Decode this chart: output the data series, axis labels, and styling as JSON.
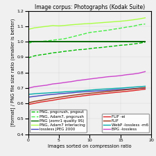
{
  "title": "Image corpus: Photographs (Kodak Suite)",
  "xlabel": "Images sorted on compression ratio",
  "ylabel": "[format] / PNG file size ratio (smaller is better)",
  "xlim": [
    0,
    20
  ],
  "ylim": [
    0.4,
    1.2
  ],
  "yticks": [
    0.4,
    0.5,
    0.6,
    0.7,
    0.8,
    0.9,
    1.0,
    1.1,
    1.2
  ],
  "xticks": [
    0,
    5,
    10,
    15,
    20
  ],
  "series": [
    {
      "name": "PNG, pngcrush, pngout",
      "color": "#00bb00",
      "linestyle": "--",
      "linewidth": 1.0,
      "x": [
        0,
        1,
        2,
        3,
        4,
        5,
        6,
        7,
        8,
        9,
        10,
        11,
        12,
        13,
        14,
        15,
        16,
        17,
        18,
        19
      ],
      "y": [
        0.895,
        0.908,
        0.915,
        0.92,
        0.928,
        0.932,
        0.938,
        0.942,
        0.948,
        0.95,
        0.955,
        0.96,
        0.963,
        0.968,
        0.972,
        0.977,
        0.98,
        0.985,
        0.99,
        0.997
      ]
    },
    {
      "name": "PNG, Adam7, pngcrush",
      "color": "#44ee44",
      "linestyle": "--",
      "linewidth": 1.0,
      "x": [
        0,
        1,
        2,
        3,
        4,
        5,
        6,
        7,
        8,
        9,
        10,
        11,
        12,
        13,
        14,
        15,
        16,
        17,
        18,
        19
      ],
      "y": [
        0.99,
        1.0,
        1.002,
        1.005,
        1.01,
        1.015,
        1.02,
        1.03,
        1.04,
        1.05,
        1.06,
        1.065,
        1.07,
        1.075,
        1.082,
        1.088,
        1.095,
        1.1,
        1.11,
        1.115
      ]
    },
    {
      "name": "PNG (zomr1 quality 9S)",
      "color": "#006600",
      "linestyle": "-",
      "linewidth": 1.4,
      "x": [
        0,
        1,
        2,
        3,
        4,
        5,
        6,
        7,
        8,
        9,
        10,
        11,
        12,
        13,
        14,
        15,
        16,
        17,
        18,
        19
      ],
      "y": [
        1.0,
        1.0,
        1.0,
        1.0,
        1.0,
        1.0,
        1.0,
        1.0,
        1.0,
        1.0,
        1.0,
        1.0,
        1.0,
        1.0,
        1.0,
        1.0,
        1.0,
        1.0,
        1.0,
        1.0
      ]
    },
    {
      "name": "PNG, Adam7 interlacing",
      "color": "#aaff44",
      "linestyle": "-",
      "linewidth": 1.0,
      "x": [
        0,
        1,
        2,
        3,
        4,
        5,
        6,
        7,
        8,
        9,
        10,
        11,
        12,
        13,
        14,
        15,
        16,
        17,
        18,
        19
      ],
      "y": [
        1.08,
        1.09,
        1.095,
        1.1,
        1.105,
        1.103,
        1.106,
        1.11,
        1.113,
        1.116,
        1.118,
        1.121,
        1.124,
        1.127,
        1.13,
        1.133,
        1.137,
        1.142,
        1.148,
        1.155
      ]
    },
    {
      "name": "lossless JPEG 2000",
      "color": "#4444bb",
      "linestyle": "-",
      "linewidth": 1.0,
      "x": [
        0,
        1,
        2,
        3,
        4,
        5,
        6,
        7,
        8,
        9,
        10,
        11,
        12,
        13,
        14,
        15,
        16,
        17,
        18,
        19
      ],
      "y": [
        0.64,
        0.645,
        0.65,
        0.655,
        0.658,
        0.662,
        0.665,
        0.668,
        0.672,
        0.675,
        0.678,
        0.68,
        0.682,
        0.685,
        0.688,
        0.69,
        0.692,
        0.695,
        0.698,
        0.7
      ]
    },
    {
      "name": "FLIF -ei",
      "color": "#dd2222",
      "linestyle": "-",
      "linewidth": 1.0,
      "x": [
        0,
        1,
        2,
        3,
        4,
        5,
        6,
        7,
        8,
        9,
        10,
        11,
        12,
        13,
        14,
        15,
        16,
        17,
        18,
        19
      ],
      "y": [
        0.592,
        0.6,
        0.608,
        0.614,
        0.62,
        0.627,
        0.633,
        0.639,
        0.644,
        0.649,
        0.654,
        0.658,
        0.662,
        0.666,
        0.67,
        0.674,
        0.678,
        0.682,
        0.687,
        0.692
      ]
    },
    {
      "name": "FLIF",
      "color": "#993311",
      "linestyle": "-",
      "linewidth": 1.0,
      "x": [
        0,
        1,
        2,
        3,
        4,
        5,
        6,
        7,
        8,
        9,
        10,
        11,
        12,
        13,
        14,
        15,
        16,
        17,
        18,
        19
      ],
      "y": [
        0.603,
        0.612,
        0.619,
        0.626,
        0.633,
        0.639,
        0.645,
        0.651,
        0.656,
        0.661,
        0.665,
        0.669,
        0.673,
        0.677,
        0.681,
        0.685,
        0.689,
        0.693,
        0.697,
        0.702
      ]
    },
    {
      "name": "WebP -lossless -m6",
      "color": "#00aaaa",
      "linestyle": "-",
      "linewidth": 1.0,
      "x": [
        0,
        1,
        2,
        3,
        4,
        5,
        6,
        7,
        8,
        9,
        10,
        11,
        12,
        13,
        14,
        15,
        16,
        17,
        18,
        19
      ],
      "y": [
        0.658,
        0.662,
        0.665,
        0.667,
        0.67,
        0.672,
        0.675,
        0.677,
        0.68,
        0.683,
        0.686,
        0.689,
        0.692,
        0.694,
        0.697,
        0.699,
        0.702,
        0.705,
        0.708,
        0.711
      ]
    },
    {
      "name": "BPG -lossless",
      "color": "#cc44cc",
      "linestyle": "-",
      "linewidth": 1.0,
      "x": [
        0,
        1,
        2,
        3,
        4,
        5,
        6,
        7,
        8,
        9,
        10,
        11,
        12,
        13,
        14,
        15,
        16,
        17,
        18,
        19
      ],
      "y": [
        0.698,
        0.708,
        0.713,
        0.718,
        0.726,
        0.73,
        0.736,
        0.741,
        0.748,
        0.753,
        0.758,
        0.763,
        0.768,
        0.773,
        0.776,
        0.78,
        0.786,
        0.79,
        0.796,
        0.806
      ]
    }
  ],
  "legend_left": [
    {
      "name": "PNG, pngcrush, pngout",
      "color": "#00bb00",
      "linestyle": "--"
    },
    {
      "name": "PNG, Adam7, pngcrush",
      "color": "#44ee44",
      "linestyle": "--"
    },
    {
      "name": "PNG (zomr1 quality 9S)",
      "color": "#006600",
      "linestyle": "-"
    },
    {
      "name": "PNG, Adam7 interlacing",
      "color": "#aaff44",
      "linestyle": "-"
    },
    {
      "name": "lossless JPEG 2000",
      "color": "#4444bb",
      "linestyle": "-"
    }
  ],
  "legend_right": [
    {
      "name": "FLIF -ei",
      "color": "#dd2222",
      "linestyle": "-"
    },
    {
      "name": "FLIF",
      "color": "#993311",
      "linestyle": "-"
    },
    {
      "name": "WebP -lossless -m6",
      "color": "#00aaaa",
      "linestyle": "-"
    },
    {
      "name": "BPG -lossless",
      "color": "#cc44cc",
      "linestyle": "-"
    }
  ],
  "background_color": "#f0f0f0",
  "title_fontsize": 5.5,
  "label_fontsize": 4.8,
  "tick_fontsize": 4.5,
  "legend_fontsize": 4.0
}
